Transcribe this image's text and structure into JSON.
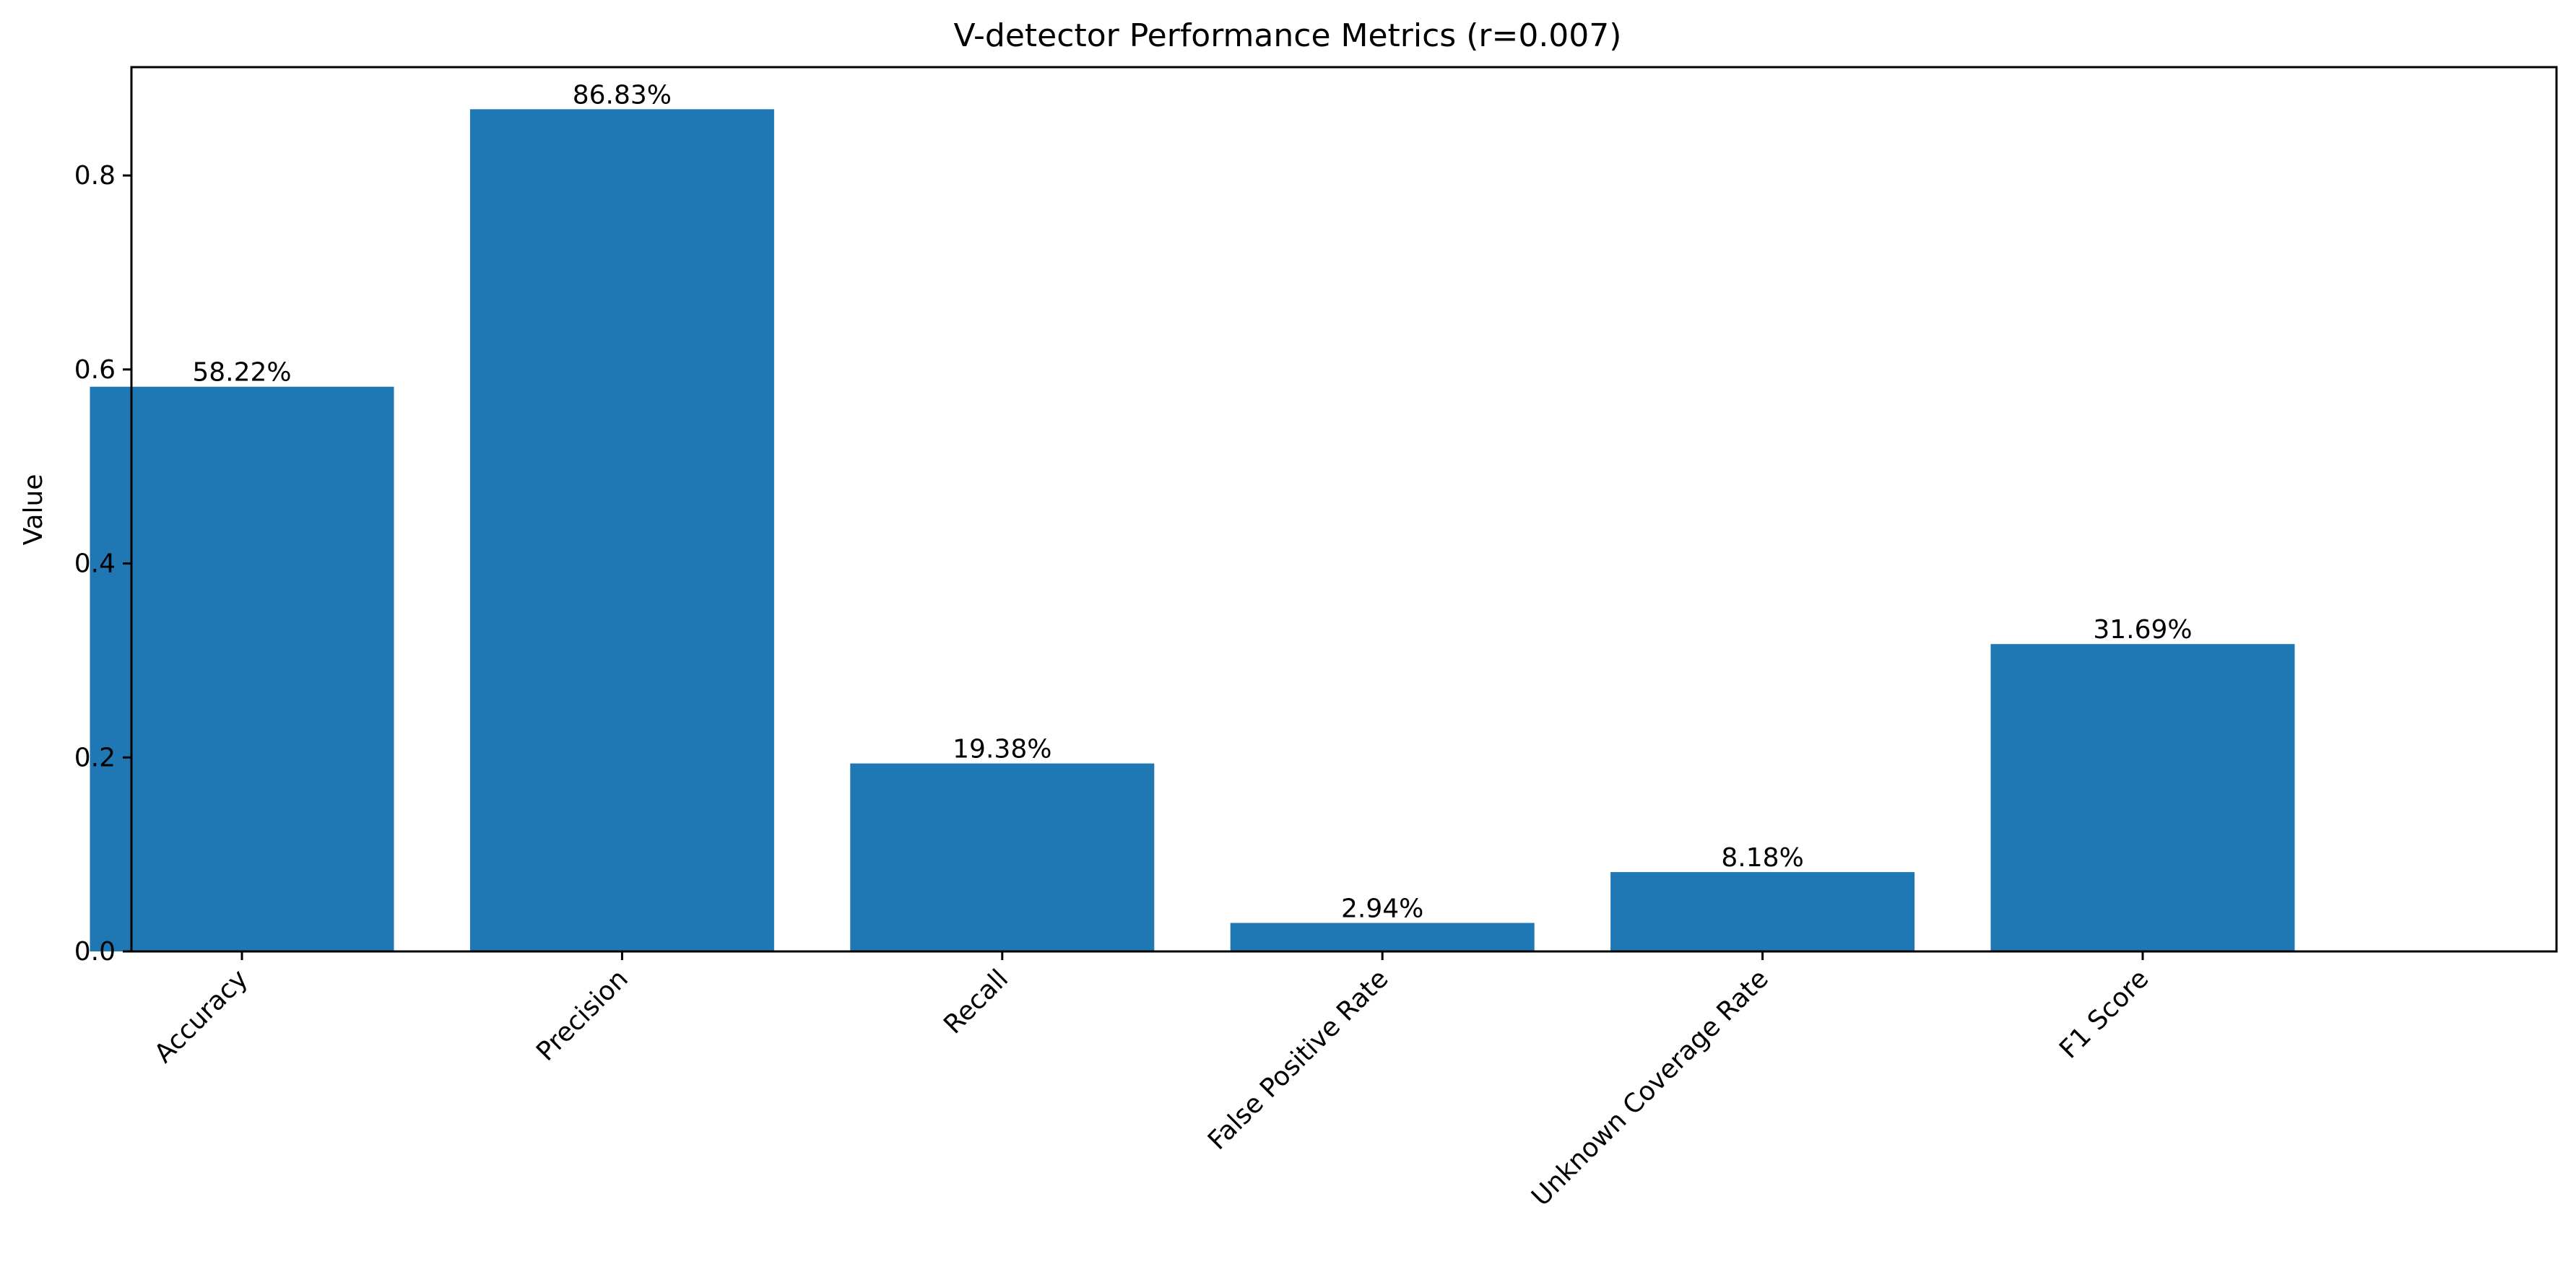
{
  "chart_data": {
    "type": "bar",
    "title": "V-detector Performance Metrics (r=0.007)",
    "xlabel": "",
    "ylabel": "Value",
    "categories": [
      "Accuracy",
      "Precision",
      "Recall",
      "False Positive Rate",
      "Unknown Coverage Rate",
      "F1 Score"
    ],
    "values": [
      0.5822,
      0.8683,
      0.1938,
      0.0294,
      0.0818,
      0.3169
    ],
    "data_labels": [
      "58.22%",
      "86.83%",
      "19.38%",
      "2.94%",
      "8.18%",
      "31.69%"
    ],
    "ylim": [
      0,
      0.9117
    ],
    "yticks": [
      0.0,
      0.2,
      0.4,
      0.6,
      0.8
    ],
    "ytick_labels": [
      "0.0",
      "0.2",
      "0.4",
      "0.6",
      "0.8"
    ],
    "bar_color": "#1f77b4",
    "grid": false,
    "legend": false
  }
}
